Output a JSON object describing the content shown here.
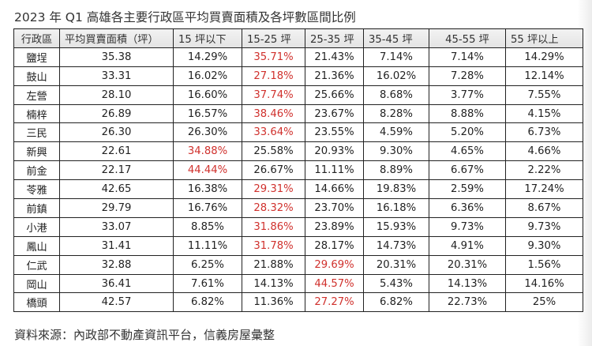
{
  "title": "2023 年 Q1  高雄各主要行政區平均買賣面積及各坪數區間比例",
  "table": {
    "headers": [
      "行政區",
      "平均買賣面積（坪）",
      "15 坪以下",
      "15-25 坪",
      "25-35 坪",
      "35-45 坪",
      "45-55 坪",
      "55 坪以上"
    ],
    "highlight_color": "#d0312d",
    "rows": [
      {
        "district": "鹽埕",
        "avg": "35.38",
        "c1": "14.29%",
        "c2": "35.71%",
        "c3": "21.43%",
        "c4": "7.14%",
        "c5": "7.14%",
        "c6": "14.29%",
        "highlight": "c2"
      },
      {
        "district": "鼓山",
        "avg": "33.31",
        "c1": "16.02%",
        "c2": "27.18%",
        "c3": "21.36%",
        "c4": "16.02%",
        "c5": "7.28%",
        "c6": "12.14%",
        "highlight": "c2"
      },
      {
        "district": "左營",
        "avg": "28.10",
        "c1": "16.60%",
        "c2": "37.74%",
        "c3": "25.66%",
        "c4": "8.68%",
        "c5": "3.77%",
        "c6": "7.55%",
        "highlight": "c2"
      },
      {
        "district": "楠梓",
        "avg": "26.89",
        "c1": "16.57%",
        "c2": "38.46%",
        "c3": "23.67%",
        "c4": "8.28%",
        "c5": "8.88%",
        "c6": "4.15%",
        "highlight": "c2"
      },
      {
        "district": "三民",
        "avg": "26.30",
        "c1": "26.30%",
        "c2": "33.64%",
        "c3": "23.55%",
        "c4": "4.59%",
        "c5": "5.20%",
        "c6": "6.73%",
        "highlight": "c2"
      },
      {
        "district": "新興",
        "avg": "22.61",
        "c1": "34.88%",
        "c2": "25.58%",
        "c3": "20.93%",
        "c4": "9.30%",
        "c5": "4.65%",
        "c6": "4.66%",
        "highlight": "c1"
      },
      {
        "district": "前金",
        "avg": "22.17",
        "c1": "44.44%",
        "c2": "26.67%",
        "c3": "11.11%",
        "c4": "8.89%",
        "c5": "6.67%",
        "c6": "2.22%",
        "highlight": "c1"
      },
      {
        "district": "苓雅",
        "avg": "42.65",
        "c1": "16.38%",
        "c2": "29.31%",
        "c3": "14.66%",
        "c4": "19.83%",
        "c5": "2.59%",
        "c6": "17.24%",
        "highlight": "c2"
      },
      {
        "district": "前鎮",
        "avg": "29.79",
        "c1": "16.76%",
        "c2": "28.32%",
        "c3": "23.70%",
        "c4": "16.18%",
        "c5": "6.36%",
        "c6": "8.67%",
        "highlight": "c2"
      },
      {
        "district": "小港",
        "avg": "33.07",
        "c1": "8.85%",
        "c2": "31.86%",
        "c3": "23.89%",
        "c4": "15.93%",
        "c5": "9.73%",
        "c6": "9.73%",
        "highlight": "c2"
      },
      {
        "district": "鳳山",
        "avg": "31.41",
        "c1": "11.11%",
        "c2": "31.78%",
        "c3": "28.17%",
        "c4": "14.73%",
        "c5": "4.91%",
        "c6": "9.30%",
        "highlight": "c2"
      },
      {
        "district": "仁武",
        "avg": "32.88",
        "c1": "6.25%",
        "c2": "21.88%",
        "c3": "29.69%",
        "c4": "20.31%",
        "c5": "20.31%",
        "c6": "1.56%",
        "highlight": "c3"
      },
      {
        "district": "岡山",
        "avg": "36.41",
        "c1": "7.61%",
        "c2": "14.13%",
        "c3": "44.57%",
        "c4": "5.43%",
        "c5": "14.13%",
        "c6": "14.16%",
        "highlight": "c3"
      },
      {
        "district": "橋頭",
        "avg": "42.57",
        "c1": "6.82%",
        "c2": "11.36%",
        "c3": "27.27%",
        "c4": "6.82%",
        "c5": "22.73%",
        "c6": "25%",
        "highlight": "c3"
      }
    ]
  },
  "source": "資料來源：內政部不動產資訊平台，信義房屋彙整"
}
